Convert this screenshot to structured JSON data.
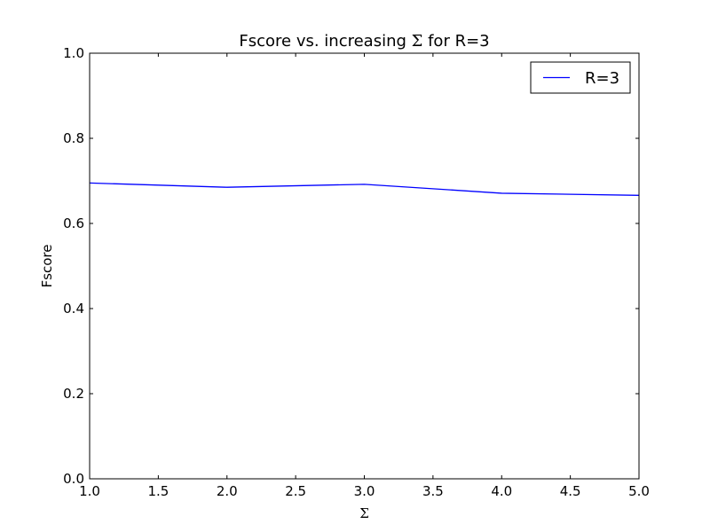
{
  "chart_data": {
    "type": "line",
    "title_prefix": "Fscore vs. increasing ",
    "title_symbol": "Σ",
    "title_suffix": " for R=3",
    "xlabel": "Σ",
    "ylabel": "Fscore",
    "xlim": [
      1.0,
      5.0
    ],
    "ylim": [
      0.0,
      1.0
    ],
    "x_ticks": [
      "1.0",
      "1.5",
      "2.0",
      "2.5",
      "3.0",
      "3.5",
      "4.0",
      "4.5",
      "5.0"
    ],
    "y_ticks": [
      "0.0",
      "0.2",
      "0.4",
      "0.6",
      "0.8",
      "1.0"
    ],
    "legend_position": "top-right",
    "grid": false,
    "series": [
      {
        "name": "R=3",
        "color": "#0000ff",
        "x": [
          1.0,
          2.0,
          3.0,
          4.0,
          5.0
        ],
        "y": [
          0.695,
          0.685,
          0.692,
          0.671,
          0.666
        ]
      }
    ]
  }
}
